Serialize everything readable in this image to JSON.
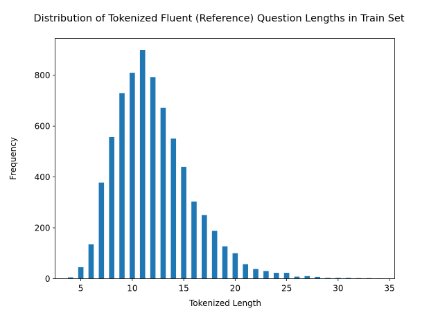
{
  "chart_data": {
    "type": "bar",
    "title": "Distribution of Tokenized Fluent (Reference) Question Lengths in Train Set",
    "xlabel": "Tokenized Length",
    "ylabel": "Frequency",
    "xlim": [
      2.5,
      35.5
    ],
    "ylim": [
      0,
      945
    ],
    "xticks": [
      5,
      10,
      15,
      20,
      25,
      30,
      35
    ],
    "yticks": [
      0,
      200,
      400,
      600,
      800
    ],
    "bar_color": "#1f77b4",
    "grid": false,
    "x": [
      4,
      5,
      6,
      7,
      8,
      9,
      10,
      11,
      12,
      13,
      14,
      15,
      16,
      17,
      18,
      19,
      20,
      21,
      22,
      23,
      24,
      25,
      26,
      27,
      28,
      29,
      30,
      31,
      32,
      33,
      34
    ],
    "values": [
      5,
      45,
      135,
      378,
      557,
      730,
      810,
      900,
      793,
      672,
      551,
      440,
      303,
      250,
      188,
      127,
      100,
      57,
      38,
      30,
      23,
      23,
      8,
      10,
      7,
      3,
      3,
      3,
      2,
      2,
      1
    ]
  }
}
